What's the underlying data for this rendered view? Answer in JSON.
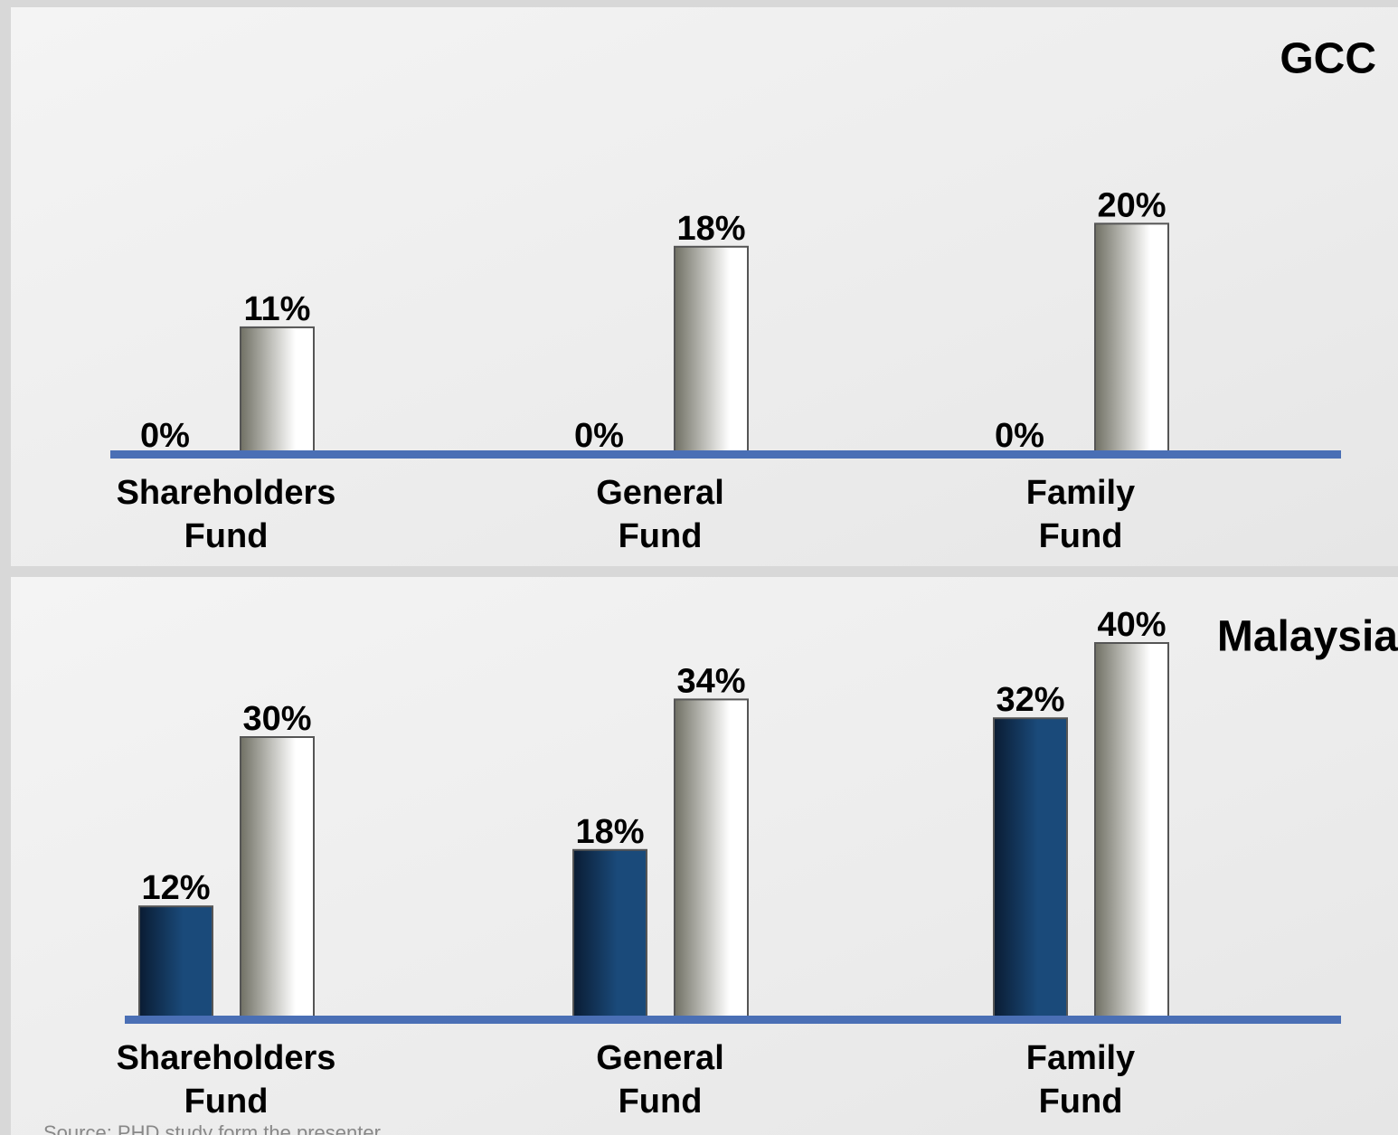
{
  "chart_data": [
    {
      "type": "bar",
      "title": "GCC",
      "categories": [
        "Shareholders Fund",
        "General Fund",
        "Family Fund"
      ],
      "series": [
        {
          "color": "#1a4a7a",
          "values": [
            0,
            0,
            0
          ],
          "value_labels": [
            "0%",
            "0%",
            "0%"
          ]
        },
        {
          "color": "#707064",
          "values": [
            11,
            18,
            20
          ],
          "value_labels": [
            "11%",
            "18%",
            "20%"
          ]
        }
      ],
      "ylim": [
        0,
        30
      ]
    },
    {
      "type": "bar",
      "title": "Malaysia",
      "categories": [
        "Shareholders Fund",
        "General Fund",
        "Family Fund"
      ],
      "series": [
        {
          "color": "#1a4a7a",
          "values": [
            12,
            18,
            32
          ],
          "value_labels": [
            "12%",
            "18%",
            "32%"
          ]
        },
        {
          "color": "#707064",
          "values": [
            30,
            34,
            40
          ],
          "value_labels": [
            "30%",
            "34%",
            "40%"
          ]
        }
      ],
      "ylim": [
        0,
        45
      ]
    }
  ],
  "source": "Source: PHD study form the presenter"
}
